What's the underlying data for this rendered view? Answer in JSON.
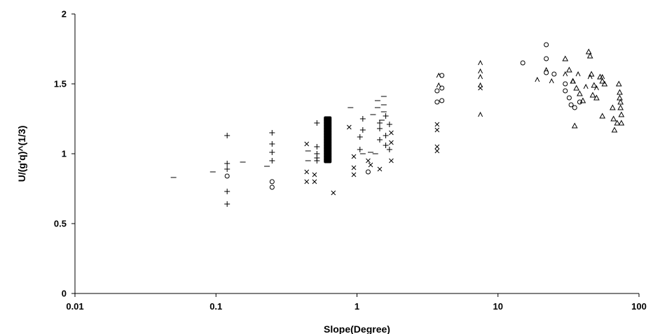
{
  "chart_data": {
    "type": "scatter",
    "xlabel": "Slope(Degree)",
    "ylabel": "U/(g'q)^(1/3)",
    "xscale": "log",
    "xlim": [
      0.01,
      100
    ],
    "ylim": [
      0,
      2
    ],
    "x_ticks": [
      "0.01",
      "0.1",
      "1",
      "10",
      "100"
    ],
    "y_ticks": [
      "0",
      "0.5",
      "1",
      "1.5",
      "2"
    ],
    "grid": false,
    "legend": "none",
    "series": [
      {
        "marker": "dash",
        "points": [
          [
            0.05,
            0.83
          ],
          [
            0.095,
            0.87
          ],
          [
            0.155,
            0.94
          ],
          [
            0.23,
            0.91
          ],
          [
            0.45,
            1.02
          ],
          [
            0.45,
            0.95
          ],
          [
            1.4,
            1.38
          ],
          [
            1.4,
            1.33
          ],
          [
            1.5,
            1.24
          ],
          [
            1.55,
            1.41
          ],
          [
            1.55,
            1.35
          ],
          [
            1.55,
            1.3
          ],
          [
            1.3,
            1.28
          ],
          [
            0.9,
            1.33
          ],
          [
            1.1,
            1.0
          ],
          [
            1.25,
            1.01
          ],
          [
            1.35,
            1.0
          ]
        ]
      },
      {
        "marker": "plus",
        "points": [
          [
            0.12,
            1.13
          ],
          [
            0.12,
            0.93
          ],
          [
            0.12,
            0.89
          ],
          [
            0.12,
            0.73
          ],
          [
            0.12,
            0.64
          ],
          [
            0.25,
            1.15
          ],
          [
            0.25,
            1.07
          ],
          [
            0.25,
            1.01
          ],
          [
            0.25,
            0.95
          ],
          [
            0.52,
            1.22
          ],
          [
            0.52,
            1.05
          ],
          [
            0.52,
            1.0
          ],
          [
            0.52,
            0.97
          ],
          [
            0.52,
            0.95
          ],
          [
            1.1,
            1.25
          ],
          [
            1.1,
            1.17
          ],
          [
            1.05,
            1.12
          ],
          [
            1.05,
            1.03
          ],
          [
            1.45,
            1.22
          ],
          [
            1.45,
            1.18
          ],
          [
            1.45,
            1.1
          ],
          [
            1.6,
            1.27
          ],
          [
            1.6,
            1.13
          ],
          [
            1.6,
            1.06
          ],
          [
            1.7,
            1.21
          ],
          [
            1.7,
            1.03
          ]
        ]
      },
      {
        "marker": "dot",
        "points": [
          [
            0.62,
            1.25
          ],
          [
            0.62,
            1.23
          ],
          [
            0.62,
            1.21
          ],
          [
            0.62,
            1.19
          ],
          [
            0.62,
            1.17
          ],
          [
            0.62,
            1.15
          ],
          [
            0.62,
            1.13
          ],
          [
            0.62,
            1.11
          ],
          [
            0.62,
            1.09
          ],
          [
            0.62,
            1.07
          ],
          [
            0.62,
            1.05
          ],
          [
            0.62,
            1.03
          ],
          [
            0.62,
            1.01
          ],
          [
            0.62,
            0.99
          ],
          [
            0.62,
            0.97
          ],
          [
            0.62,
            0.95
          ]
        ]
      },
      {
        "marker": "x",
        "points": [
          [
            0.44,
            1.07
          ],
          [
            0.44,
            0.87
          ],
          [
            0.44,
            0.8
          ],
          [
            0.5,
            0.85
          ],
          [
            0.5,
            0.8
          ],
          [
            0.68,
            0.72
          ],
          [
            0.88,
            1.19
          ],
          [
            0.95,
            0.98
          ],
          [
            0.95,
            0.9
          ],
          [
            0.95,
            0.85
          ],
          [
            1.2,
            0.95
          ],
          [
            1.25,
            0.92
          ],
          [
            1.45,
            0.89
          ],
          [
            1.75,
            0.95
          ],
          [
            1.75,
            1.08
          ],
          [
            1.75,
            1.15
          ],
          [
            3.7,
            1.21
          ],
          [
            3.7,
            1.17
          ],
          [
            3.7,
            1.05
          ],
          [
            3.7,
            1.02
          ],
          [
            7.5,
            1.47
          ]
        ]
      },
      {
        "marker": "circle",
        "points": [
          [
            0.12,
            0.84
          ],
          [
            0.25,
            0.8
          ],
          [
            0.25,
            0.76
          ],
          [
            1.2,
            0.87
          ],
          [
            3.7,
            1.45
          ],
          [
            3.7,
            1.37
          ],
          [
            4.0,
            1.56
          ],
          [
            4.0,
            1.47
          ],
          [
            4.0,
            1.38
          ],
          [
            15,
            1.65
          ],
          [
            22,
            1.78
          ],
          [
            22,
            1.68
          ],
          [
            22,
            1.58
          ],
          [
            25,
            1.57
          ],
          [
            30,
            1.5
          ],
          [
            30,
            1.45
          ],
          [
            32,
            1.4
          ],
          [
            33,
            1.35
          ],
          [
            35,
            1.33
          ],
          [
            38,
            1.37
          ]
        ]
      },
      {
        "marker": "caret",
        "points": [
          [
            3.8,
            1.56
          ],
          [
            3.8,
            1.49
          ],
          [
            7.5,
            1.65
          ],
          [
            7.5,
            1.59
          ],
          [
            7.5,
            1.55
          ],
          [
            7.5,
            1.49
          ],
          [
            7.5,
            1.28
          ],
          [
            19,
            1.53
          ],
          [
            22,
            1.6
          ],
          [
            24,
            1.52
          ],
          [
            30,
            1.57
          ],
          [
            34,
            1.52
          ],
          [
            37,
            1.57
          ],
          [
            42,
            1.48
          ],
          [
            45,
            1.55
          ],
          [
            50,
            1.47
          ],
          [
            55,
            1.55
          ]
        ]
      },
      {
        "marker": "triangle",
        "points": [
          [
            30,
            1.68
          ],
          [
            32,
            1.6
          ],
          [
            34,
            1.52
          ],
          [
            36,
            1.47
          ],
          [
            35,
            1.2
          ],
          [
            38,
            1.43
          ],
          [
            40,
            1.38
          ],
          [
            44,
            1.73
          ],
          [
            45,
            1.7
          ],
          [
            46,
            1.57
          ],
          [
            47,
            1.42
          ],
          [
            48,
            1.49
          ],
          [
            50,
            1.4
          ],
          [
            53,
            1.55
          ],
          [
            55,
            1.52
          ],
          [
            55,
            1.27
          ],
          [
            57,
            1.5
          ],
          [
            65,
            1.33
          ],
          [
            66,
            1.25
          ],
          [
            67,
            1.17
          ],
          [
            70,
            1.22
          ],
          [
            72,
            1.5
          ],
          [
            73,
            1.44
          ],
          [
            73,
            1.4
          ],
          [
            74,
            1.37
          ],
          [
            74,
            1.33
          ],
          [
            75,
            1.28
          ],
          [
            75,
            1.22
          ]
        ]
      }
    ]
  }
}
